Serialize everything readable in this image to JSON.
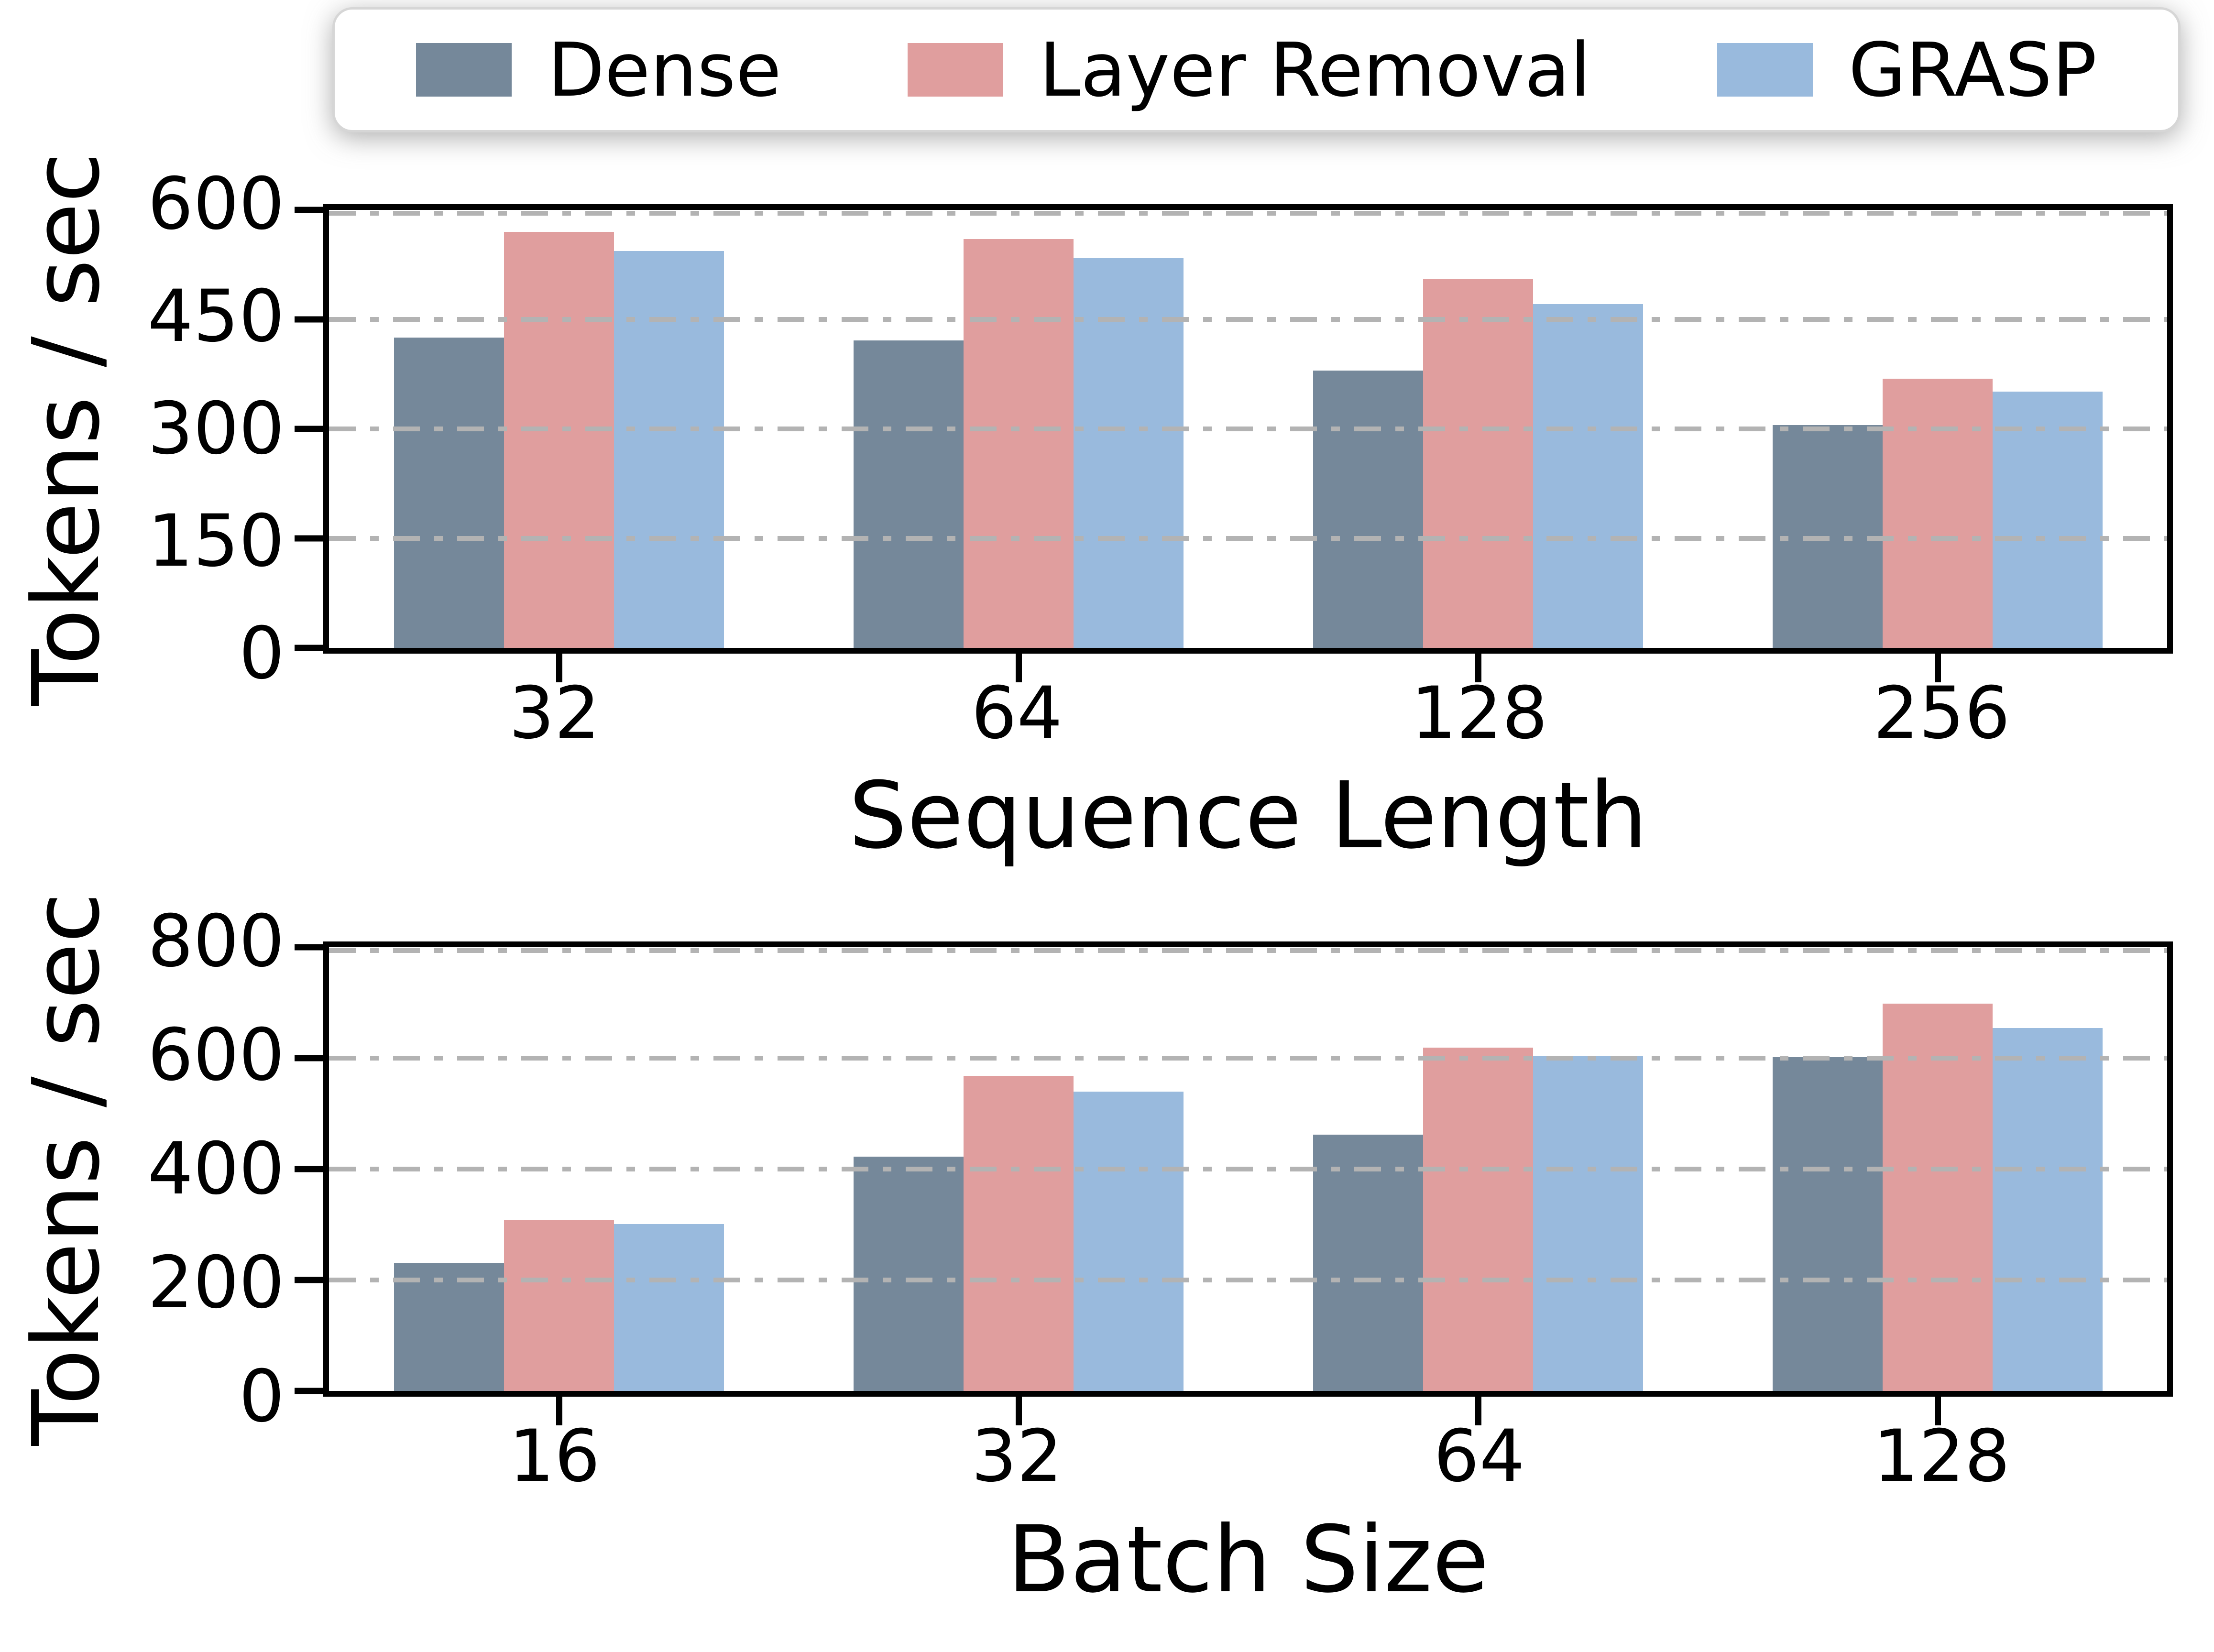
{
  "figure": {
    "background": "#ffffff"
  },
  "colors": {
    "dense": "#75889a",
    "layer_removal": "#e09e9e",
    "grasp": "#99badd",
    "gridline": "#b3b3b3",
    "axis": "#000000",
    "legend_border": "#d6d6d6"
  },
  "legend": {
    "position": "top",
    "items": [
      {
        "label": "Dense",
        "color": "#75889a"
      },
      {
        "label": "Layer Removal",
        "color": "#e09e9e"
      },
      {
        "label": "GRASP",
        "color": "#99badd"
      }
    ]
  },
  "chart_data": [
    {
      "type": "bar",
      "title": "",
      "xlabel": "Sequence Length",
      "ylabel": "Tokens / sec",
      "categories": [
        "32",
        "64",
        "128",
        "256"
      ],
      "series": [
        {
          "name": "Dense",
          "color": "#75889a",
          "values": [
            425,
            421,
            380,
            305
          ]
        },
        {
          "name": "Layer Removal",
          "color": "#e09e9e",
          "values": [
            570,
            560,
            506,
            369
          ]
        },
        {
          "name": "GRASP",
          "color": "#99badd",
          "values": [
            544,
            534,
            471,
            351
          ]
        }
      ],
      "ylim": [
        0,
        600
      ],
      "yticks": [
        0,
        150,
        300,
        450,
        600
      ],
      "grid": "horizontal dash-dot at yticks",
      "legend_position": "above top chart"
    },
    {
      "type": "bar",
      "title": "",
      "xlabel": "Batch Size",
      "ylabel": "Tokens / sec",
      "categories": [
        "16",
        "32",
        "64",
        "128"
      ],
      "series": [
        {
          "name": "Dense",
          "color": "#75889a",
          "values": [
            230,
            422,
            462,
            602
          ]
        },
        {
          "name": "Layer Removal",
          "color": "#e09e9e",
          "values": [
            309,
            568,
            619,
            698
          ]
        },
        {
          "name": "GRASP",
          "color": "#99badd",
          "values": [
            301,
            540,
            604,
            654
          ]
        }
      ],
      "ylim": [
        0,
        800
      ],
      "yticks": [
        0,
        200,
        400,
        600,
        800
      ],
      "grid": "horizontal dash-dot at yticks",
      "legend_position": "shared"
    }
  ]
}
